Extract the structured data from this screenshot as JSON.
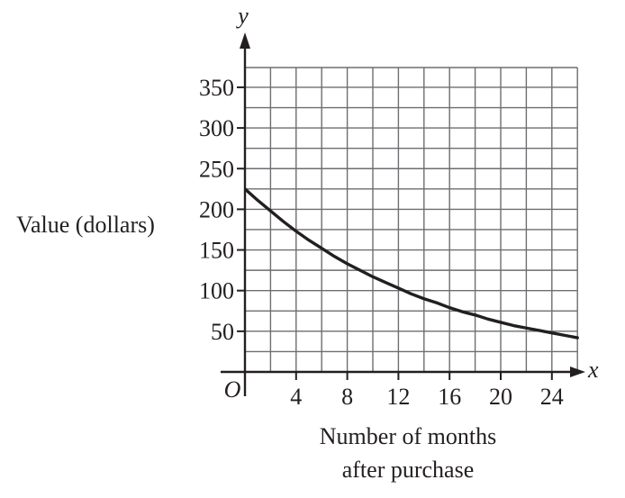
{
  "chart_data": {
    "type": "line",
    "title": "",
    "xlabel_lines": [
      "Number of months",
      "after purchase"
    ],
    "ylabel": "Value (dollars)",
    "x_axis_letter": "x",
    "y_axis_letter": "y",
    "origin_label": "O",
    "xlim": [
      0,
      26
    ],
    "ylim": [
      0,
      400
    ],
    "x_ticks": [
      4,
      8,
      12,
      16,
      20,
      24
    ],
    "y_ticks": [
      50,
      100,
      150,
      200,
      250,
      300,
      350
    ],
    "x_grid_step": 2,
    "y_grid_step": 25,
    "grid": true,
    "series": [
      {
        "x": [
          0,
          1,
          2,
          3,
          4,
          5,
          6,
          7,
          8,
          9,
          10,
          11,
          12,
          13,
          14,
          15,
          16,
          17,
          18,
          19,
          20,
          21,
          22,
          23,
          24,
          25,
          26
        ],
        "y": [
          225,
          211,
          198,
          185,
          173,
          162,
          152,
          142,
          133,
          125,
          117,
          110,
          103,
          96,
          90,
          85,
          79,
          74,
          70,
          65,
          61,
          57,
          54,
          51,
          48,
          45,
          42
        ]
      }
    ],
    "colors": {
      "ink": "#231f20",
      "grid": "#6d6e71"
    }
  }
}
